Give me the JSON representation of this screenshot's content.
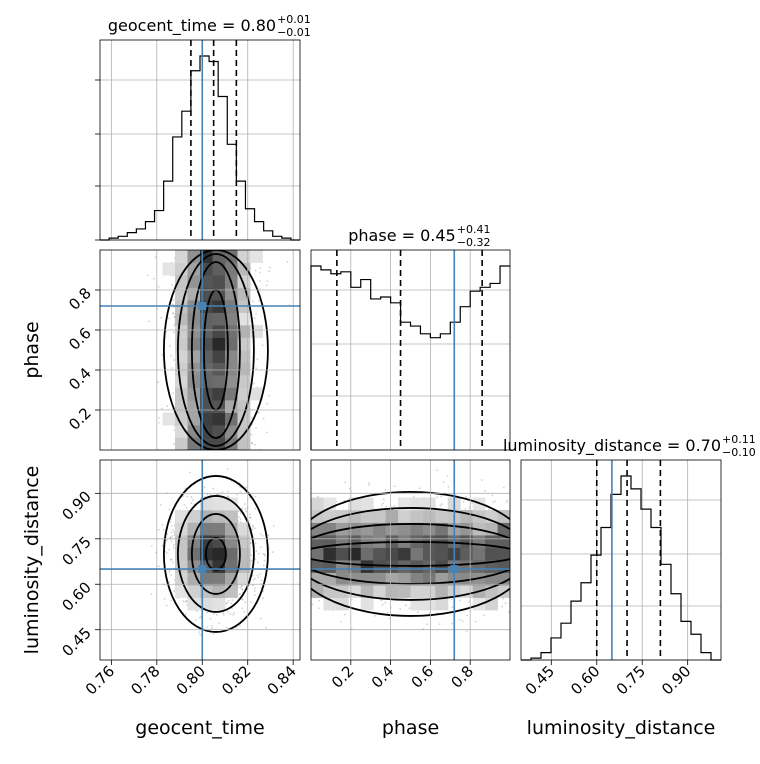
{
  "chart_data": {
    "type": "corner",
    "parameters": [
      {
        "name": "geocent_time",
        "range": [
          0.755,
          0.843
        ],
        "ticks": [
          "0.76",
          "0.78",
          "0.80",
          "0.82",
          "0.84"
        ],
        "tick_values": [
          0.76,
          0.78,
          0.8,
          0.82,
          0.84
        ],
        "truth": 0.8
      },
      {
        "name": "phase",
        "range": [
          0.0,
          1.0
        ],
        "ticks": [
          "0.2",
          "0.4",
          "0.6",
          "0.8"
        ],
        "tick_values": [
          0.2,
          0.4,
          0.6,
          0.8
        ],
        "truth": 0.72
      },
      {
        "name": "luminosity_distance",
        "range": [
          0.35,
          1.01
        ],
        "ticks": [
          "0.45",
          "0.60",
          "0.75",
          "0.90"
        ],
        "tick_values": [
          0.45,
          0.6,
          0.75,
          0.9
        ],
        "truth": 0.65
      }
    ],
    "titles": [
      {
        "param": "geocent_time",
        "text": "geocent_time = 0.80",
        "sup": "+0.01",
        "sub": "−0.01"
      },
      {
        "param": "phase",
        "text": "phase = 0.45",
        "sup": "+0.41",
        "sub": "−0.32"
      },
      {
        "param": "luminosity_distance",
        "text": "luminosity_distance = 0.70",
        "sup": "+0.11",
        "sub": "−0.10"
      }
    ],
    "histograms": [
      {
        "param": "geocent_time",
        "bin_edges": [
          0.755,
          0.759,
          0.763,
          0.767,
          0.771,
          0.775,
          0.779,
          0.783,
          0.787,
          0.791,
          0.795,
          0.799,
          0.803,
          0.807,
          0.811,
          0.815,
          0.819,
          0.823,
          0.827,
          0.831,
          0.835,
          0.839,
          0.843
        ],
        "counts": [
          0.0,
          0.01,
          0.02,
          0.04,
          0.06,
          0.1,
          0.16,
          0.32,
          0.56,
          0.7,
          0.92,
          1.0,
          0.97,
          0.78,
          0.52,
          0.32,
          0.17,
          0.1,
          0.05,
          0.02,
          0.01,
          0.0
        ],
        "quantiles": [
          0.795,
          0.805,
          0.815
        ]
      },
      {
        "param": "phase",
        "bin_edges": [
          0.0,
          0.05,
          0.1,
          0.15,
          0.2,
          0.25,
          0.3,
          0.35,
          0.4,
          0.45,
          0.5,
          0.55,
          0.6,
          0.65,
          0.7,
          0.75,
          0.8,
          0.85,
          0.9,
          0.95,
          1.0
        ],
        "counts": [
          0.95,
          0.93,
          0.91,
          0.92,
          0.84,
          0.88,
          0.78,
          0.79,
          0.76,
          0.66,
          0.64,
          0.6,
          0.58,
          0.6,
          0.66,
          0.74,
          0.82,
          0.84,
          0.86,
          0.95
        ],
        "quantiles": [
          0.13,
          0.45,
          0.86
        ]
      },
      {
        "param": "luminosity_distance",
        "bin_edges": [
          0.35,
          0.383,
          0.416,
          0.449,
          0.482,
          0.515,
          0.548,
          0.581,
          0.614,
          0.647,
          0.68,
          0.713,
          0.746,
          0.779,
          0.812,
          0.845,
          0.878,
          0.911,
          0.944,
          0.977,
          1.01
        ],
        "counts": [
          0.0,
          0.01,
          0.04,
          0.12,
          0.2,
          0.32,
          0.42,
          0.57,
          0.72,
          0.9,
          1.0,
          0.93,
          0.82,
          0.72,
          0.52,
          0.36,
          0.21,
          0.14,
          0.04,
          0.0
        ],
        "quantiles": [
          0.6,
          0.7,
          0.81
        ]
      }
    ],
    "grid": true,
    "truth_color": "#4682b4",
    "marks_color": "#000000",
    "density_color": "#000000"
  }
}
